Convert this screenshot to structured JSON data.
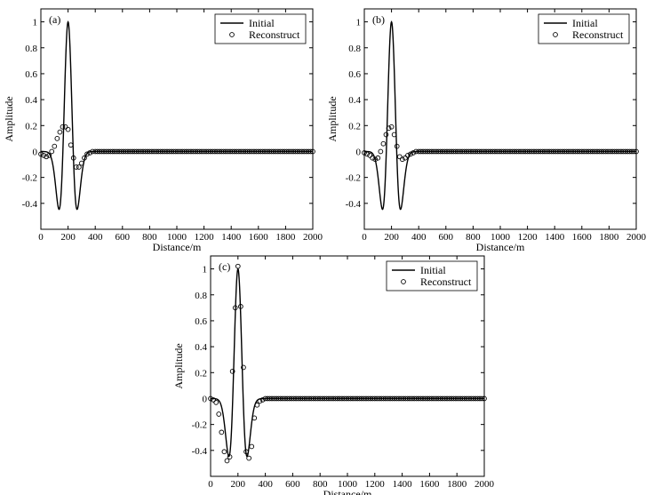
{
  "legend": {
    "line": "Initial",
    "markers": "Reconstruct"
  },
  "chart_data": [
    {
      "type": "line",
      "panel_label": "(a)",
      "xlabel": "Distance/m",
      "ylabel": "Amplitude",
      "xlim": [
        0,
        2000
      ],
      "ylim": [
        -0.6,
        1.1
      ],
      "xticks": [
        0,
        200,
        400,
        600,
        800,
        1000,
        1200,
        1400,
        1600,
        1800,
        2000
      ],
      "yticks": [
        -0.4,
        -0.2,
        0,
        0.2,
        0.4,
        0.6,
        0.8,
        1
      ],
      "legend_position": "top-right",
      "series": [
        {
          "name": "Initial",
          "style": "line",
          "ricker_center": 200,
          "ricker_sigma": 54,
          "amplitude": 1.0,
          "x_range": [
            0,
            2000
          ]
        },
        {
          "name": "Reconstruct",
          "style": "circle-markers",
          "x": [
            0,
            20,
            40,
            60,
            80,
            100,
            120,
            140,
            160,
            180,
            200,
            220,
            240,
            260,
            280,
            300,
            320,
            340,
            360,
            380,
            400
          ],
          "y": [
            -0.02,
            -0.03,
            -0.04,
            -0.03,
            0.0,
            0.04,
            0.1,
            0.15,
            0.19,
            0.19,
            0.17,
            0.05,
            -0.05,
            -0.12,
            -0.12,
            -0.09,
            -0.05,
            -0.02,
            -0.01,
            0.0,
            0.0
          ],
          "tail_x_range": [
            400,
            2000
          ],
          "tail_step": 16,
          "tail_value": 0
        }
      ]
    },
    {
      "type": "line",
      "panel_label": "(b)",
      "xlabel": "Distance/m",
      "ylabel": "Amplitude",
      "xlim": [
        0,
        2000
      ],
      "ylim": [
        -0.6,
        1.1
      ],
      "xticks": [
        0,
        200,
        400,
        600,
        800,
        1000,
        1200,
        1400,
        1600,
        1800,
        2000
      ],
      "yticks": [
        -0.4,
        -0.2,
        0,
        0.2,
        0.4,
        0.6,
        0.8,
        1
      ],
      "legend_position": "top-right",
      "series": [
        {
          "name": "Initial",
          "style": "line",
          "ricker_center": 200,
          "ricker_sigma": 54,
          "amplitude": 1.0,
          "x_range": [
            0,
            2000
          ]
        },
        {
          "name": "Reconstruct",
          "style": "circle-markers",
          "x": [
            0,
            20,
            40,
            60,
            80,
            100,
            120,
            140,
            160,
            180,
            200,
            220,
            240,
            260,
            280,
            300,
            320,
            340,
            360,
            380,
            400
          ],
          "y": [
            -0.01,
            -0.02,
            -0.03,
            -0.05,
            -0.06,
            -0.05,
            0.0,
            0.06,
            0.13,
            0.18,
            0.19,
            0.13,
            0.04,
            -0.04,
            -0.06,
            -0.05,
            -0.03,
            -0.02,
            -0.01,
            0.0,
            0.0
          ],
          "tail_x_range": [
            400,
            2000
          ],
          "tail_step": 16,
          "tail_value": 0
        }
      ]
    },
    {
      "type": "line",
      "panel_label": "(c)",
      "xlabel": "Distance/m",
      "ylabel": "Amplitude",
      "xlim": [
        0,
        2000
      ],
      "ylim": [
        -0.6,
        1.1
      ],
      "xticks": [
        0,
        200,
        400,
        600,
        800,
        1000,
        1200,
        1400,
        1600,
        1800,
        2000
      ],
      "yticks": [
        -0.4,
        -0.2,
        0,
        0.2,
        0.4,
        0.6,
        0.8,
        1
      ],
      "legend_position": "top-right",
      "series": [
        {
          "name": "Initial",
          "style": "line",
          "ricker_center": 200,
          "ricker_sigma": 54,
          "amplitude": 1.0,
          "x_range": [
            0,
            2000
          ]
        },
        {
          "name": "Reconstruct",
          "style": "circle-markers",
          "x": [
            0,
            20,
            40,
            60,
            80,
            100,
            120,
            140,
            160,
            180,
            200,
            220,
            240,
            260,
            280,
            300,
            320,
            340,
            360,
            380,
            400
          ],
          "y": [
            0.0,
            -0.01,
            -0.03,
            -0.12,
            -0.26,
            -0.41,
            -0.48,
            -0.45,
            0.21,
            0.7,
            1.02,
            0.71,
            0.24,
            -0.41,
            -0.46,
            -0.37,
            -0.15,
            -0.05,
            -0.02,
            -0.01,
            0.0
          ],
          "tail_x_range": [
            400,
            2000
          ],
          "tail_step": 16,
          "tail_value": 0
        }
      ]
    }
  ]
}
